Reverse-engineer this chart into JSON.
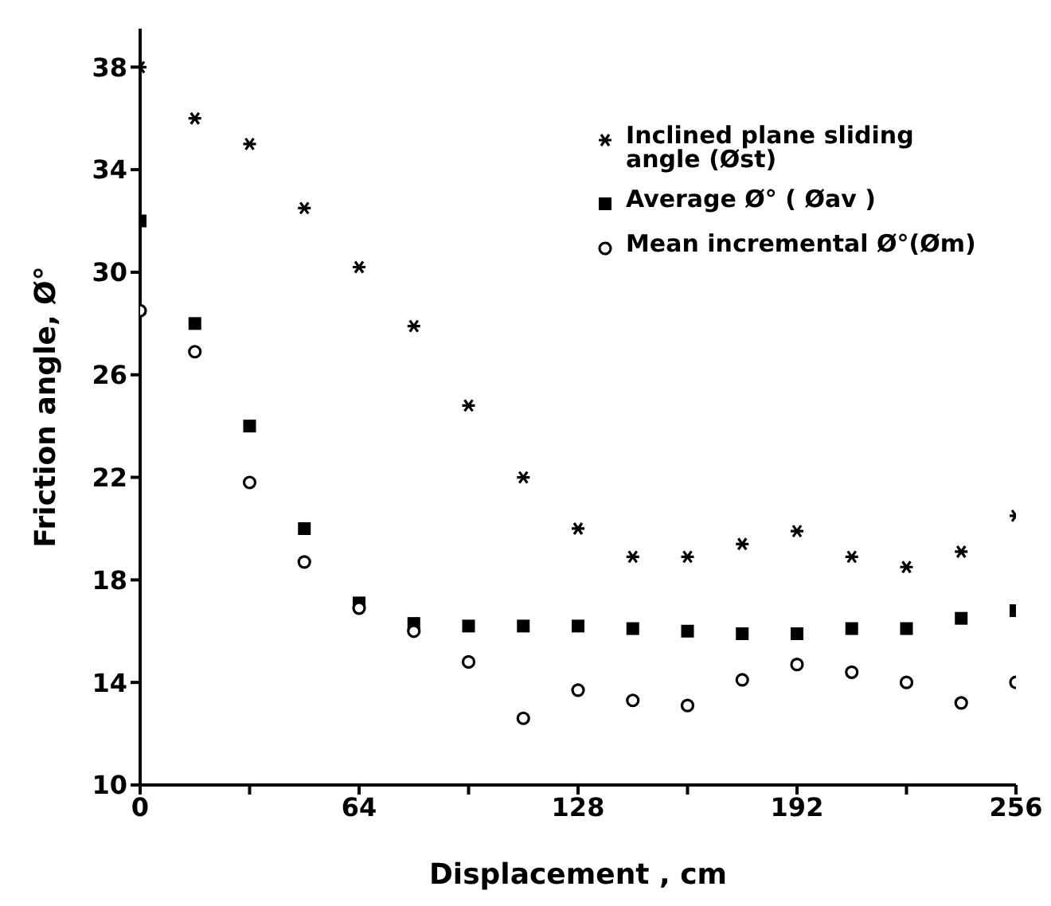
{
  "chart_data": {
    "type": "scatter",
    "xlabel": "Displacement , cm",
    "ylabel": "Friction angle, Ø°",
    "x": [
      0,
      16,
      32,
      48,
      64,
      80,
      96,
      112,
      128,
      144,
      160,
      176,
      192,
      208,
      224,
      240,
      256
    ],
    "series": [
      {
        "name": "Inclined plane sliding angle (Øst)",
        "color": "#000000",
        "marker": "cross",
        "values": [
          38,
          36,
          35,
          32.5,
          30.2,
          27.9,
          24.8,
          22,
          20,
          18.9,
          18.9,
          19.4,
          19.9,
          18.9,
          18.5,
          19.1,
          20.5
        ]
      },
      {
        "name": "Average Ø° ( Øav )",
        "color": "#000000",
        "marker": "square",
        "values": [
          32,
          28,
          24,
          20,
          17.1,
          16.3,
          16.2,
          16.2,
          16.2,
          16.1,
          16,
          15.9,
          15.9,
          16.1,
          16.1,
          16.5,
          16.8
        ]
      },
      {
        "name": "Mean incremental Ø°(Øm)",
        "color": "#000000",
        "marker": "circle",
        "values": [
          28.5,
          26.9,
          21.8,
          18.7,
          16.9,
          16,
          14.8,
          12.6,
          13.7,
          13.3,
          13.1,
          14.1,
          14.7,
          14.4,
          14,
          13.2,
          14
        ]
      }
    ],
    "xlim": [
      0,
      256
    ],
    "xticks": [
      0,
      {
        "value": 32,
        "label": null
      },
      64,
      {
        "value": 96,
        "label": null
      },
      128,
      {
        "value": 160,
        "label": null
      },
      192,
      {
        "value": 224,
        "label": null
      },
      256
    ],
    "ylim": [
      10,
      39.5
    ],
    "yticks": [
      10,
      14,
      18,
      22,
      26,
      30,
      34,
      38
    ],
    "legend": "top right",
    "grid": false
  }
}
